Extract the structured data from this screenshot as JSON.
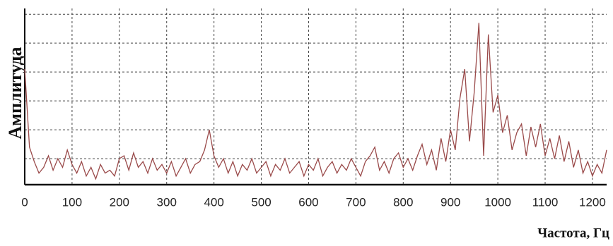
{
  "chart_data": {
    "type": "line",
    "y_label": "Амплитуда",
    "x_label": "Частота, Гц",
    "xlim": [
      0,
      1230
    ],
    "xticks": [
      0,
      100,
      200,
      300,
      400,
      500,
      600,
      700,
      800,
      900,
      1000,
      1100,
      1200
    ],
    "ylim": [
      0,
      6.1
    ],
    "ygrid": [
      0.9,
      1.9,
      2.9,
      3.9,
      4.9,
      5.9
    ],
    "grid": true,
    "x": [
      0,
      10,
      20,
      30,
      40,
      50,
      60,
      70,
      80,
      90,
      100,
      110,
      120,
      130,
      140,
      150,
      160,
      170,
      180,
      190,
      200,
      210,
      220,
      230,
      240,
      250,
      260,
      270,
      280,
      290,
      300,
      310,
      320,
      330,
      340,
      350,
      360,
      370,
      380,
      390,
      400,
      410,
      420,
      430,
      440,
      450,
      460,
      470,
      480,
      490,
      500,
      510,
      520,
      530,
      540,
      550,
      560,
      570,
      580,
      590,
      600,
      610,
      620,
      630,
      640,
      650,
      660,
      670,
      680,
      690,
      700,
      710,
      720,
      730,
      740,
      750,
      760,
      770,
      780,
      790,
      800,
      810,
      820,
      830,
      840,
      850,
      860,
      870,
      880,
      890,
      900,
      910,
      920,
      930,
      940,
      950,
      960,
      970,
      980,
      990,
      1000,
      1010,
      1020,
      1030,
      1040,
      1050,
      1060,
      1070,
      1080,
      1090,
      1100,
      1110,
      1120,
      1130,
      1140,
      1150,
      1160,
      1170,
      1180,
      1190,
      1200,
      1210,
      1220,
      1230
    ],
    "series": [
      {
        "color": "#9a4a4a",
        "values": [
          4.0,
          1.3,
          0.8,
          0.4,
          0.6,
          1.0,
          0.5,
          0.9,
          0.6,
          1.2,
          0.7,
          0.4,
          0.8,
          0.3,
          0.6,
          0.2,
          0.7,
          0.4,
          0.5,
          0.3,
          0.9,
          1.0,
          0.5,
          1.1,
          0.6,
          0.8,
          0.4,
          0.9,
          0.5,
          0.7,
          0.4,
          0.8,
          0.3,
          0.6,
          0.9,
          0.4,
          0.7,
          0.8,
          1.2,
          1.9,
          1.0,
          0.6,
          0.9,
          0.4,
          0.8,
          0.3,
          0.7,
          0.5,
          0.9,
          0.4,
          0.6,
          0.8,
          0.3,
          0.7,
          0.5,
          0.9,
          0.4,
          0.6,
          0.8,
          0.3,
          0.7,
          0.5,
          0.9,
          0.3,
          0.6,
          0.8,
          0.4,
          0.7,
          0.5,
          0.9,
          0.6,
          0.3,
          0.8,
          1.0,
          1.3,
          0.5,
          0.8,
          0.4,
          0.9,
          1.1,
          0.6,
          0.9,
          0.5,
          1.0,
          1.4,
          0.7,
          1.2,
          0.5,
          1.6,
          0.8,
          1.9,
          1.2,
          3.0,
          4.0,
          1.5,
          3.2,
          5.6,
          1.0,
          5.2,
          2.5,
          3.1,
          1.8,
          2.4,
          1.2,
          1.8,
          2.1,
          1.0,
          2.0,
          1.3,
          2.1,
          1.0,
          1.6,
          0.9,
          1.7,
          0.8,
          1.5,
          0.6,
          1.2,
          0.4,
          0.8,
          0.3,
          0.7,
          0.4,
          1.2
        ]
      }
    ]
  }
}
